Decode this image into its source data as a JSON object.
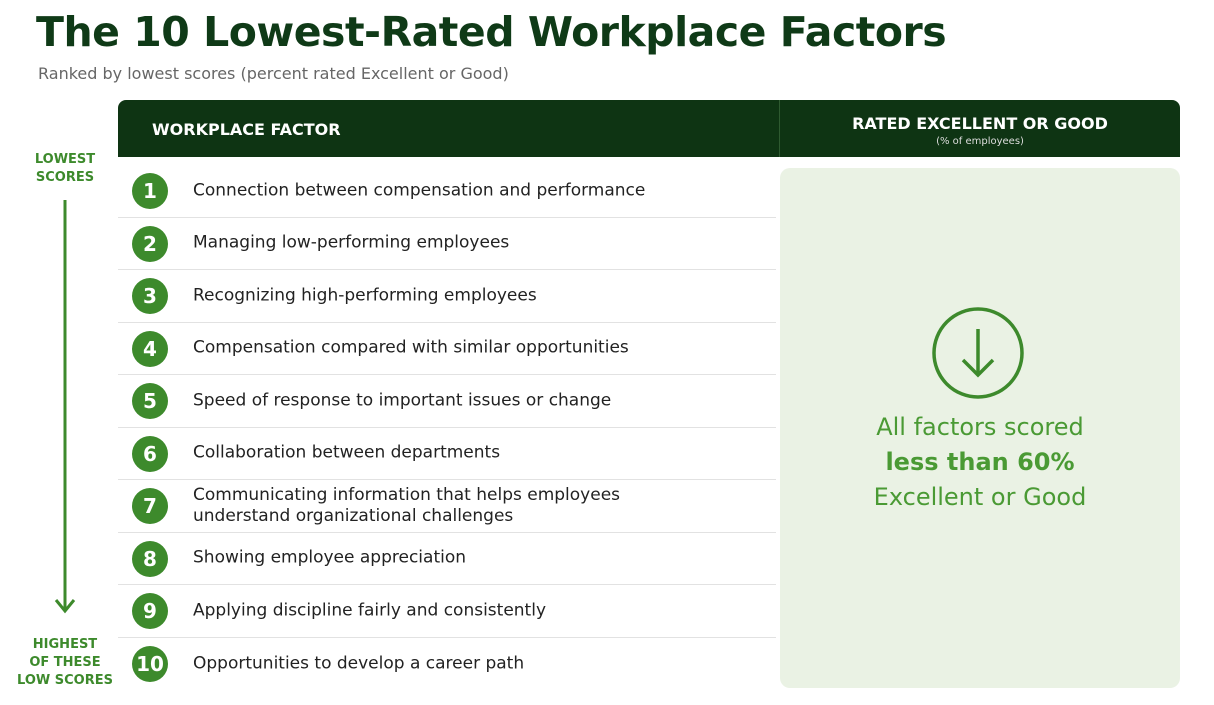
{
  "title": "The 10 Lowest-Rated Workplace Factors",
  "subtitle": "Ranked by lowest scores (percent rated Excellent or Good)",
  "header": {
    "factor": "WORKPLACE FACTOR",
    "rating": "RATED EXCELLENT OR GOOD",
    "rating_note": "(% of employees)"
  },
  "side_labels": {
    "top": [
      "LOWEST",
      "SCORES"
    ],
    "bottom": [
      "HIGHEST",
      "OF THESE",
      "LOW SCORES"
    ]
  },
  "rows": [
    {
      "rank": 1,
      "factor": "Connection between compensation and performance"
    },
    {
      "rank": 2,
      "factor": "Managing low-performing employees"
    },
    {
      "rank": 3,
      "factor": "Recognizing high-performing employees"
    },
    {
      "rank": 4,
      "factor": "Compensation compared with similar opportunities"
    },
    {
      "rank": 5,
      "factor": "Speed of response to important issues or change"
    },
    {
      "rank": 6,
      "factor": "Collaboration between departments"
    },
    {
      "rank": 7,
      "factor": "Communicating information that helps employees understand organizational challenges"
    },
    {
      "rank": 8,
      "factor": "Showing employee appreciation"
    },
    {
      "rank": 9,
      "factor": "Applying discipline fairly and consistently"
    },
    {
      "rank": 10,
      "factor": "Opportunities to develop a career path"
    }
  ],
  "callout": {
    "lines": [
      "All factors scored",
      "less than 60%",
      "Excellent or Good"
    ]
  }
}
